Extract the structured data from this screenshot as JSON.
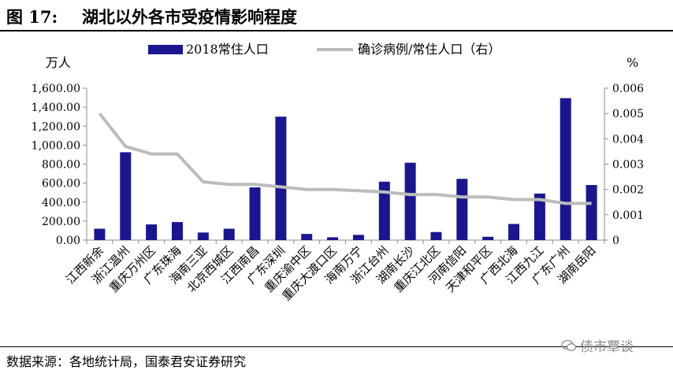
{
  "figure": {
    "label": "图 17:",
    "title": "湖北以外各市受疫情影响程度"
  },
  "source": "数据来源：各地统计局，国泰君安证券研究",
  "watermark": "债市覃谈",
  "colors": {
    "bar": "#1a1690",
    "line": "#bcbcbc",
    "axis": "#8c8c8c"
  },
  "chart_data": {
    "type": "bar",
    "categories": [
      "江西新余",
      "浙江温州",
      "重庆万州区",
      "广东珠海",
      "海南三亚",
      "北京西城区",
      "江西南昌",
      "广东深圳",
      "重庆渝中区",
      "重庆大渡口区",
      "海南万宁",
      "浙江台州",
      "湖南长沙",
      "重庆江北区",
      "河南信阳",
      "天津和平区",
      "广西北海",
      "江西九江",
      "广东广州",
      "湖南岳阳"
    ],
    "series": [
      {
        "name": "2018常住人口",
        "axis": "left",
        "values": [
          120,
          925,
          165,
          190,
          80,
          120,
          555,
          1300,
          65,
          30,
          55,
          615,
          815,
          85,
          645,
          35,
          170,
          490,
          1495,
          580
        ]
      },
      {
        "name": "确诊病例/常住人口（右）",
        "axis": "right",
        "type": "line",
        "values": [
          0.005,
          0.0037,
          0.0034,
          0.0034,
          0.0023,
          0.0022,
          0.0022,
          0.0021,
          0.002,
          0.002,
          0.00195,
          0.0019,
          0.0018,
          0.0018,
          0.0017,
          0.0017,
          0.0016,
          0.0016,
          0.00145,
          0.00145
        ]
      }
    ],
    "ylabel": "万人",
    "ylabel_right": "%",
    "ylim": [
      0,
      1600
    ],
    "ylim_right": [
      0,
      0.006
    ],
    "yticks": [
      "0.00",
      "200.00",
      "400.00",
      "600.00",
      "800.00",
      "1,000.00",
      "1,200.00",
      "1,400.00",
      "1,600.00"
    ],
    "yticks_right": [
      "0",
      "0.001",
      "0.002",
      "0.003",
      "0.004",
      "0.005",
      "0.006"
    ],
    "legend_position": "top-center",
    "grid": false
  }
}
